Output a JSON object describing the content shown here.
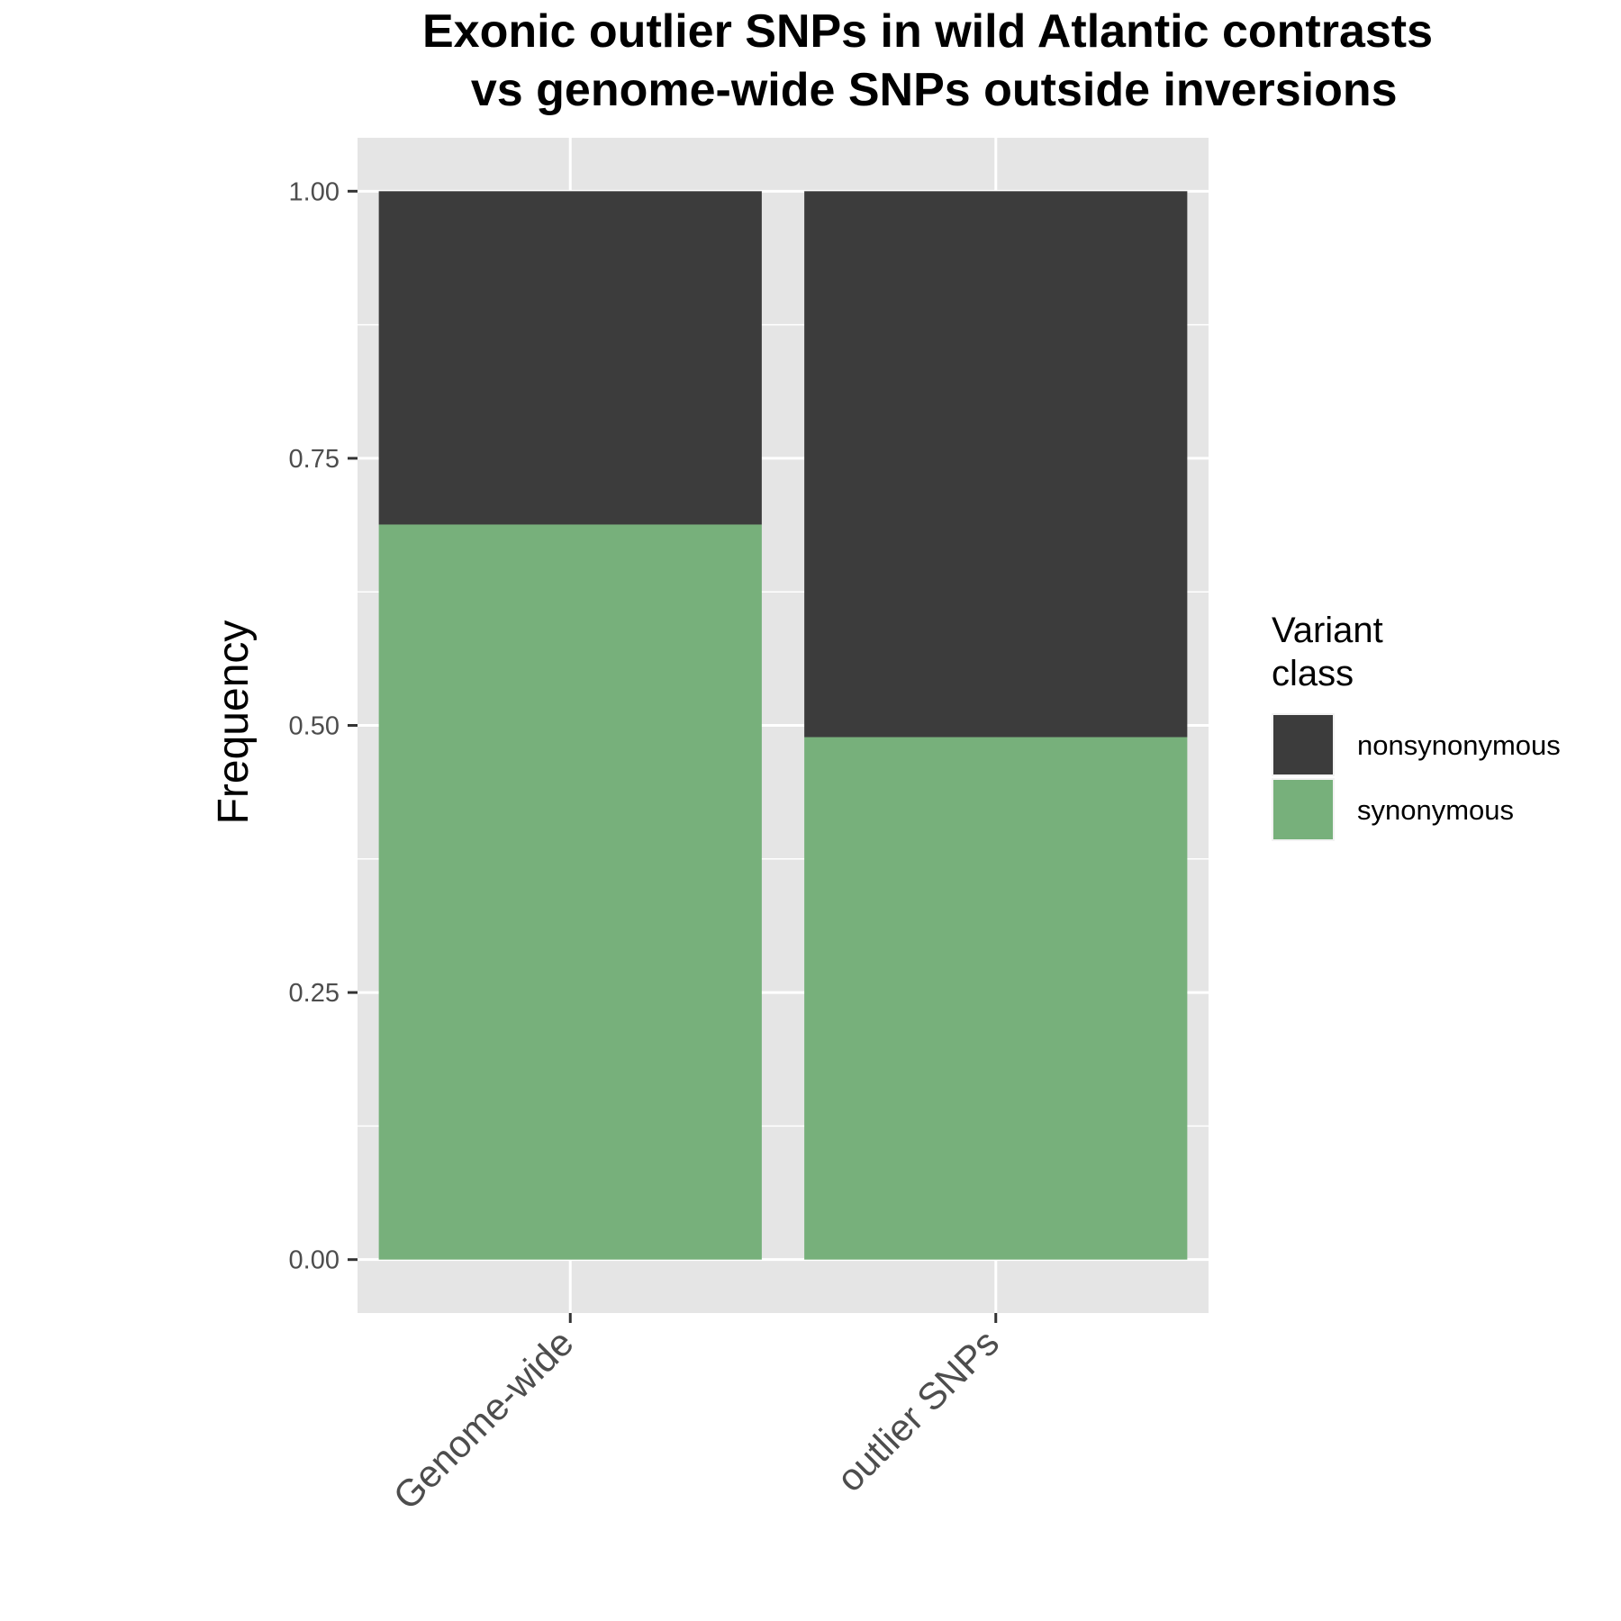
{
  "chart_data": {
    "type": "bar",
    "stacked": true,
    "title_lines": [
      "Exonic outlier SNPs in wild Atlantic contrasts",
      " vs genome-wide SNPs outside inversions"
    ],
    "xlabel": "",
    "ylabel": "Frequency",
    "categories": [
      "Genome-wide",
      "outlier SNPs"
    ],
    "series": [
      {
        "name": "synonymous",
        "values": [
          0.688,
          0.489
        ],
        "color": "#77b07b"
      },
      {
        "name": "nonsynonymous",
        "values": [
          0.312,
          0.511
        ],
        "color": "#3c3c3c"
      }
    ],
    "ylim": [
      -0.05,
      1.05
    ],
    "yticks": [
      0,
      0.25,
      0.5,
      0.75,
      1.0
    ],
    "ytick_labels": [
      "0.00",
      "0.25",
      "0.50",
      "0.75",
      "1.00"
    ],
    "grid": true,
    "panel_background": "#e5e5e5",
    "legend": {
      "title_lines": [
        "Variant",
        "class"
      ],
      "position": "right",
      "entries": [
        {
          "label": "nonsynonymous",
          "color": "#3c3c3c"
        },
        {
          "label": "synonymous",
          "color": "#77b07b"
        }
      ]
    }
  }
}
